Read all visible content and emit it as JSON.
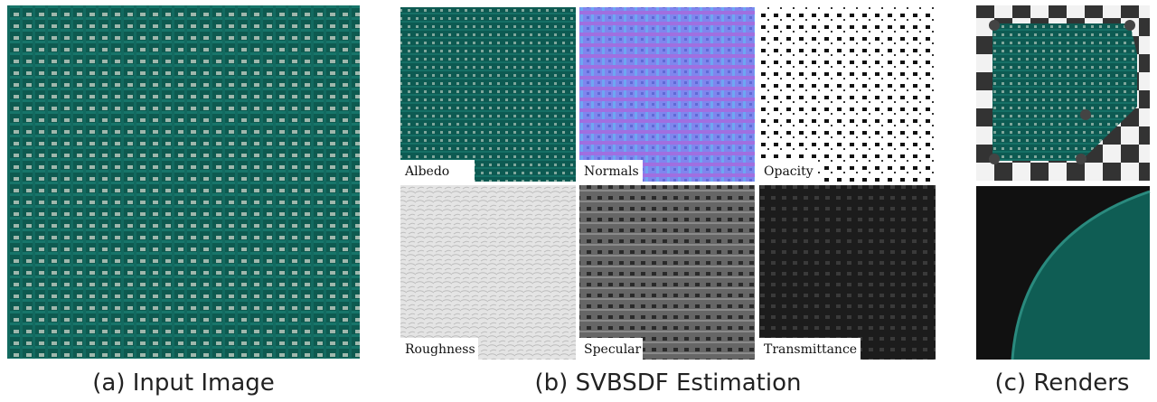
{
  "figure": {
    "panels": [
      {
        "caption": "(a) Input Image"
      },
      {
        "caption": "(b) SVBSDF Estimation",
        "maps": [
          "Albedo",
          "Normals",
          "Opacity",
          "Roughness",
          "Specular",
          "Transmittance"
        ]
      },
      {
        "caption": "(c) Renders"
      }
    ]
  }
}
